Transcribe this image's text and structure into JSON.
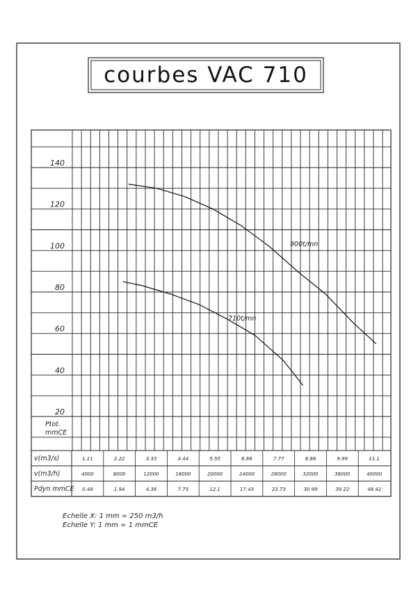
{
  "title": "courbes VAC 710",
  "scale_notes": [
    "Echelle X: 1 mm = 250 m3/h",
    "Echelle Y: 1 mm = 1 mmCE"
  ],
  "chart_data": {
    "type": "line",
    "ylabel": "Ptot. mmCE",
    "y_ticks": [
      "140",
      "120",
      "100",
      "80",
      "60",
      "40",
      "20"
    ],
    "ylim": [
      7,
      155
    ],
    "xlim": [
      0,
      44000
    ],
    "x_unit": "m3/h",
    "grid": true,
    "series": [
      {
        "name": "900t/mn",
        "x": [
          8000,
          12000,
          16000,
          20000,
          24000,
          28000,
          32000,
          36000,
          40000,
          43200
        ],
        "y": [
          132,
          130,
          126,
          120,
          112,
          102,
          90,
          79,
          65,
          55
        ]
      },
      {
        "name": "710t/mn",
        "x": [
          7200,
          10000,
          14000,
          18000,
          22000,
          26000,
          30000,
          32800
        ],
        "y": [
          85,
          83,
          79,
          74,
          67,
          59,
          47,
          35
        ]
      }
    ],
    "table": {
      "rows": [
        {
          "label": "v(m3/s)",
          "values": [
            "1.11",
            "2.22",
            "3.33",
            "4.44",
            "5.55",
            "6.66",
            "7.77",
            "8.88",
            "9.99",
            "11.1"
          ]
        },
        {
          "label": "v(m3/h)",
          "values": [
            "4000",
            "8000",
            "12000",
            "16000",
            "20000",
            "24000",
            "28000",
            "32000",
            "36000",
            "40000"
          ]
        },
        {
          "label": "Pdyn mmCE",
          "values": [
            "0.48",
            "1.94",
            "4.36",
            "7.75",
            "12.1",
            "17.43",
            "23.73",
            "30.99",
            "39.22",
            "48.42"
          ]
        }
      ]
    }
  }
}
